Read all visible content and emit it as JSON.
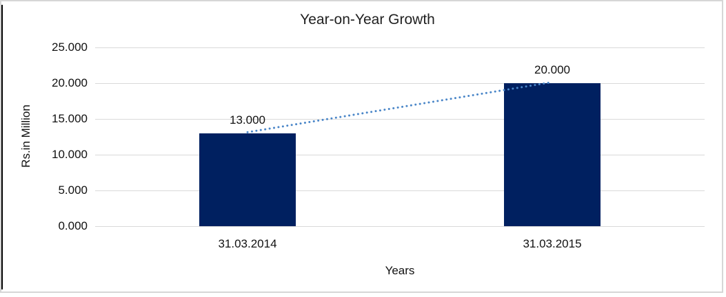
{
  "chart_data": {
    "type": "bar",
    "title": "Year-on-Year Growth",
    "xlabel": "Years",
    "ylabel": "Rs.in Million",
    "categories": [
      "31.03.2014",
      "31.03.2015"
    ],
    "values": [
      13.0,
      20.0
    ],
    "data_labels": [
      "13.000",
      "20.000"
    ],
    "yticks": [
      "25.000",
      "20.000",
      "15.000",
      "10.000",
      "5.000",
      "0.000"
    ],
    "ylim": [
      0,
      25
    ],
    "ytick_interval": 5,
    "grid": true,
    "legend": "none",
    "trendline": {
      "style": "dotted",
      "connects": "bar tops"
    }
  },
  "colors": {
    "bar_fill": "#002060",
    "trendline": "#4a86c8",
    "gridline": "#d9d9d9",
    "frame_border": "#d6d6d6",
    "left_accent_line": "#000000",
    "text": "#111111",
    "background": "#ffffff"
  }
}
